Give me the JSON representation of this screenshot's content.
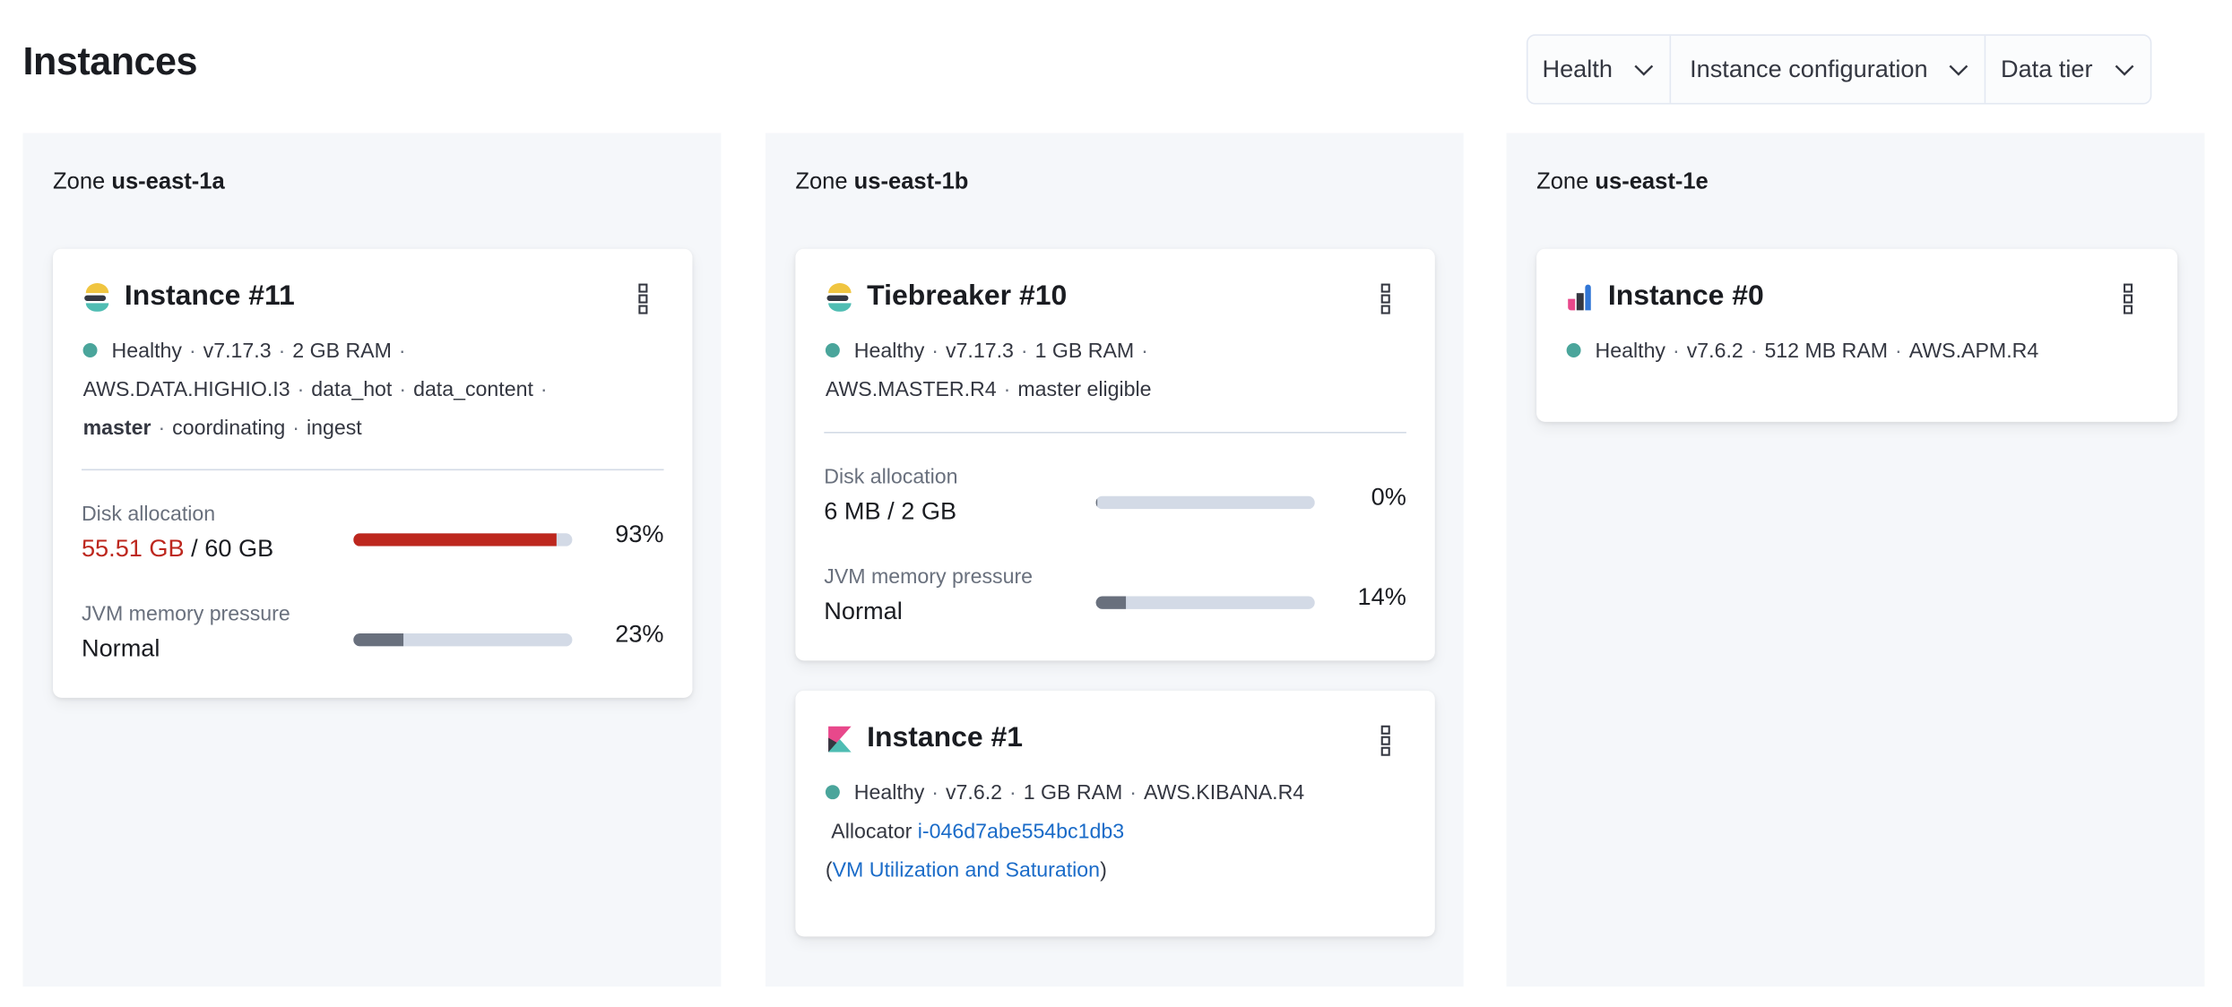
{
  "page": {
    "title": "Instances"
  },
  "filters": [
    {
      "label": "Health",
      "icon": "chevron-down-icon"
    },
    {
      "label": "Instance configuration",
      "icon": "chevron-down-icon"
    },
    {
      "label": "Data tier",
      "icon": "chevron-down-icon"
    }
  ],
  "colors": {
    "healthy": "#4aa59b",
    "danger": "#bd271e",
    "link": "#1a6bc8",
    "track": "#d3dae6",
    "fill_normal": "#69707d",
    "zone_bg": "#f5f7fa"
  },
  "zones": [
    {
      "prefix": "Zone",
      "name": "us-east-1a",
      "cards": [
        {
          "title": "Instance #11",
          "icon": "elasticsearch-logo-icon",
          "meta": {
            "status": "Healthy",
            "version": "v7.17.3",
            "ram": "2 GB RAM",
            "config": "AWS.DATA.HIGHIO.I3",
            "roles": [
              "data_hot",
              "data_content"
            ],
            "role_bold": "master",
            "roles2": [
              "coordinating",
              "ingest"
            ]
          },
          "disk": {
            "label": "Disk allocation",
            "used": "55.51 GB",
            "total": "/ 60 GB",
            "percent_label": "93%",
            "percent": 93
          },
          "jvm": {
            "label": "JVM memory pressure",
            "value": "Normal",
            "percent_label": "23%",
            "percent": 23
          }
        }
      ]
    },
    {
      "prefix": "Zone",
      "name": "us-east-1b",
      "cards": [
        {
          "title": "Tiebreaker #10",
          "icon": "elasticsearch-logo-icon",
          "meta": {
            "status": "Healthy",
            "version": "v7.17.3",
            "ram": "1 GB RAM",
            "config": "AWS.MASTER.R4",
            "role": "master eligible"
          },
          "disk": {
            "label": "Disk allocation",
            "value": "6 MB / 2 GB",
            "percent_label": "0%",
            "percent": 0.3
          },
          "jvm": {
            "label": "JVM memory pressure",
            "value": "Normal",
            "percent_label": "14%",
            "percent": 14
          }
        },
        {
          "title": "Instance #1",
          "icon": "kibana-logo-icon",
          "meta": {
            "status": "Healthy",
            "version": "v7.6.2",
            "ram": "1 GB RAM",
            "config": "AWS.KIBANA.R4"
          },
          "allocator": {
            "label": "Allocator",
            "id": "i-046d7abe554bc1db3",
            "open": "(",
            "link": "VM Utilization and Saturation",
            "close": ")"
          }
        }
      ]
    },
    {
      "prefix": "Zone",
      "name": "us-east-1e",
      "cards": [
        {
          "title": "Instance #0",
          "icon": "apm-logo-icon",
          "meta": {
            "status": "Healthy",
            "version": "v7.6.2",
            "ram": "512 MB RAM",
            "config": "AWS.APM.R4"
          }
        }
      ]
    }
  ]
}
